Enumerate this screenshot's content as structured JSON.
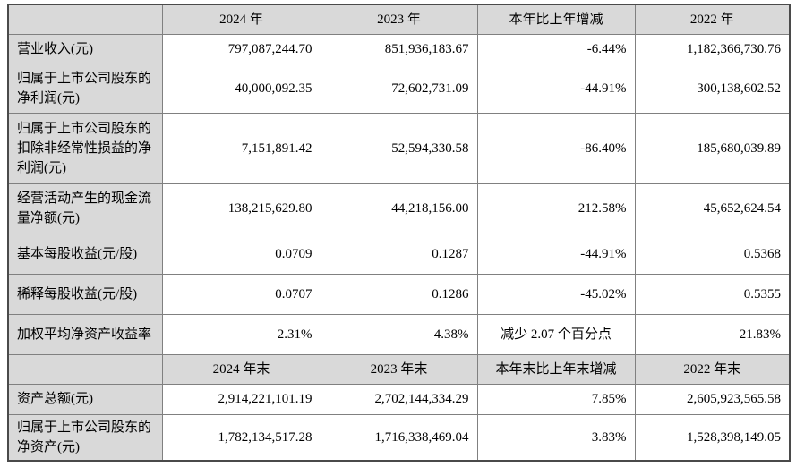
{
  "table_title_hint": "主要会计数据和财务指标",
  "colors": {
    "shaded_cell_bg": "#d9d9d9",
    "border": "#808080",
    "outer_border": "#4a4a4a",
    "text": "#000000"
  },
  "header1": {
    "c0": "",
    "c1": "2024 年",
    "c2": "2023 年",
    "c3": "本年比上年增减",
    "c4": "2022 年"
  },
  "rows": [
    {
      "label": "营业收入(元)",
      "y1": "797,087,244.70",
      "y2": "851,936,183.67",
      "change": "-6.44%",
      "y3": "1,182,366,730.76"
    },
    {
      "label": "归属于上市公司股东的净利润(元)",
      "y1": "40,000,092.35",
      "y2": "72,602,731.09",
      "change": "-44.91%",
      "y3": "300,138,602.52"
    },
    {
      "label": "归属于上市公司股东的扣除非经常性损益的净利润(元)",
      "y1": "7,151,891.42",
      "y2": "52,594,330.58",
      "change": "-86.40%",
      "y3": "185,680,039.89"
    },
    {
      "label": "经营活动产生的现金流量净额(元)",
      "y1": "138,215,629.80",
      "y2": "44,218,156.00",
      "change": "212.58%",
      "y3": "45,652,624.54"
    },
    {
      "label": "基本每股收益(元/股)",
      "y1": "0.0709",
      "y2": "0.1287",
      "change": "-44.91%",
      "y3": "0.5368"
    },
    {
      "label": "稀释每股收益(元/股)",
      "y1": "0.0707",
      "y2": "0.1286",
      "change": "-45.02%",
      "y3": "0.5355"
    },
    {
      "label": "加权平均净资产收益率",
      "y1": "2.31%",
      "y2": "4.38%",
      "change": "减少 2.07 个百分点",
      "y3": "21.83%"
    }
  ],
  "header2": {
    "c0": "",
    "c1": "2024 年末",
    "c2": "2023 年末",
    "c3": "本年末比上年末增减",
    "c4": "2022 年末"
  },
  "rows2": [
    {
      "label": "资产总额(元)",
      "y1": "2,914,221,101.19",
      "y2": "2,702,144,334.29",
      "change": "7.85%",
      "y3": "2,605,923,565.58"
    },
    {
      "label": "归属于上市公司股东的净资产(元)",
      "y1": "1,782,134,517.28",
      "y2": "1,716,338,469.04",
      "change": "3.83%",
      "y3": "1,528,398,149.05"
    }
  ]
}
